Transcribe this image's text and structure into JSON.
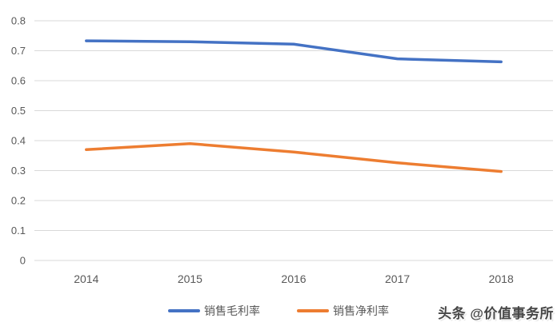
{
  "chart_data": {
    "type": "line",
    "title": "",
    "xlabel": "",
    "ylabel": "",
    "categories": [
      "2014",
      "2015",
      "2016",
      "2017",
      "2018"
    ],
    "series": [
      {
        "name": "销售毛利率",
        "color": "#4472C4",
        "values": [
          0.733,
          0.73,
          0.722,
          0.673,
          0.663
        ]
      },
      {
        "name": "销售净利率",
        "color": "#ED7D31",
        "values": [
          0.37,
          0.39,
          0.362,
          0.326,
          0.297
        ]
      }
    ],
    "ylim": [
      0,
      0.8
    ],
    "ytick_step": 0.1,
    "ytick_labels": [
      "0",
      "0.1",
      "0.2",
      "0.3",
      "0.4",
      "0.5",
      "0.6",
      "0.7",
      "0.8"
    ],
    "grid": true,
    "legend_position": "bottom"
  },
  "legend": {
    "items": [
      {
        "label": "销售毛利率",
        "color": "#4472C4"
      },
      {
        "label": "销售净利率",
        "color": "#ED7D31"
      }
    ]
  },
  "watermark": {
    "text": "头条 @价值事务所"
  },
  "colors": {
    "background": "#FFFFFF",
    "gridline": "#D9D9D9",
    "axis_text": "#595959",
    "series_blue": "#4472C4",
    "series_orange": "#ED7D31"
  }
}
